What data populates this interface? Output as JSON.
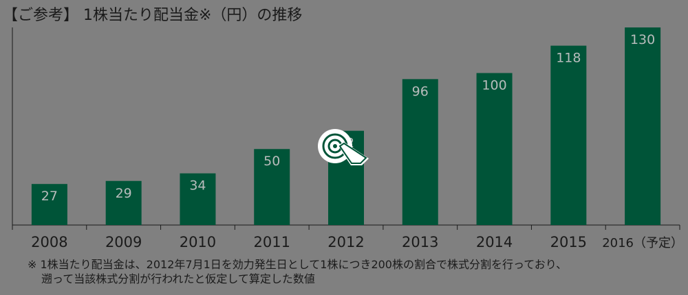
{
  "title": "【ご参考】 1株当たり配当金※（円）の推移",
  "chart_data": {
    "type": "bar",
    "title": "【ご参考】 1株当たり配当金※（円）の推移",
    "categories": [
      "2008",
      "2009",
      "2010",
      "2011",
      "2012",
      "2013",
      "2014",
      "2015",
      "2016（予定）"
    ],
    "values": [
      27,
      29,
      34,
      50,
      62,
      96,
      100,
      118,
      130
    ],
    "ylim": [
      0,
      130
    ],
    "grid": false,
    "legend": "none",
    "bar_color": "#005438",
    "label_color": "#b8bcbc"
  },
  "footnote": {
    "line1": "※ 1株当たり配当金は、2012年7月1日を効力発生日として1株につき200株の割合で株式分割を行っており、",
    "line2": "遡って当該株式分割が行われたと仮定して算定した数値"
  },
  "overlay": {
    "icon": "tap-cursor-icon"
  }
}
